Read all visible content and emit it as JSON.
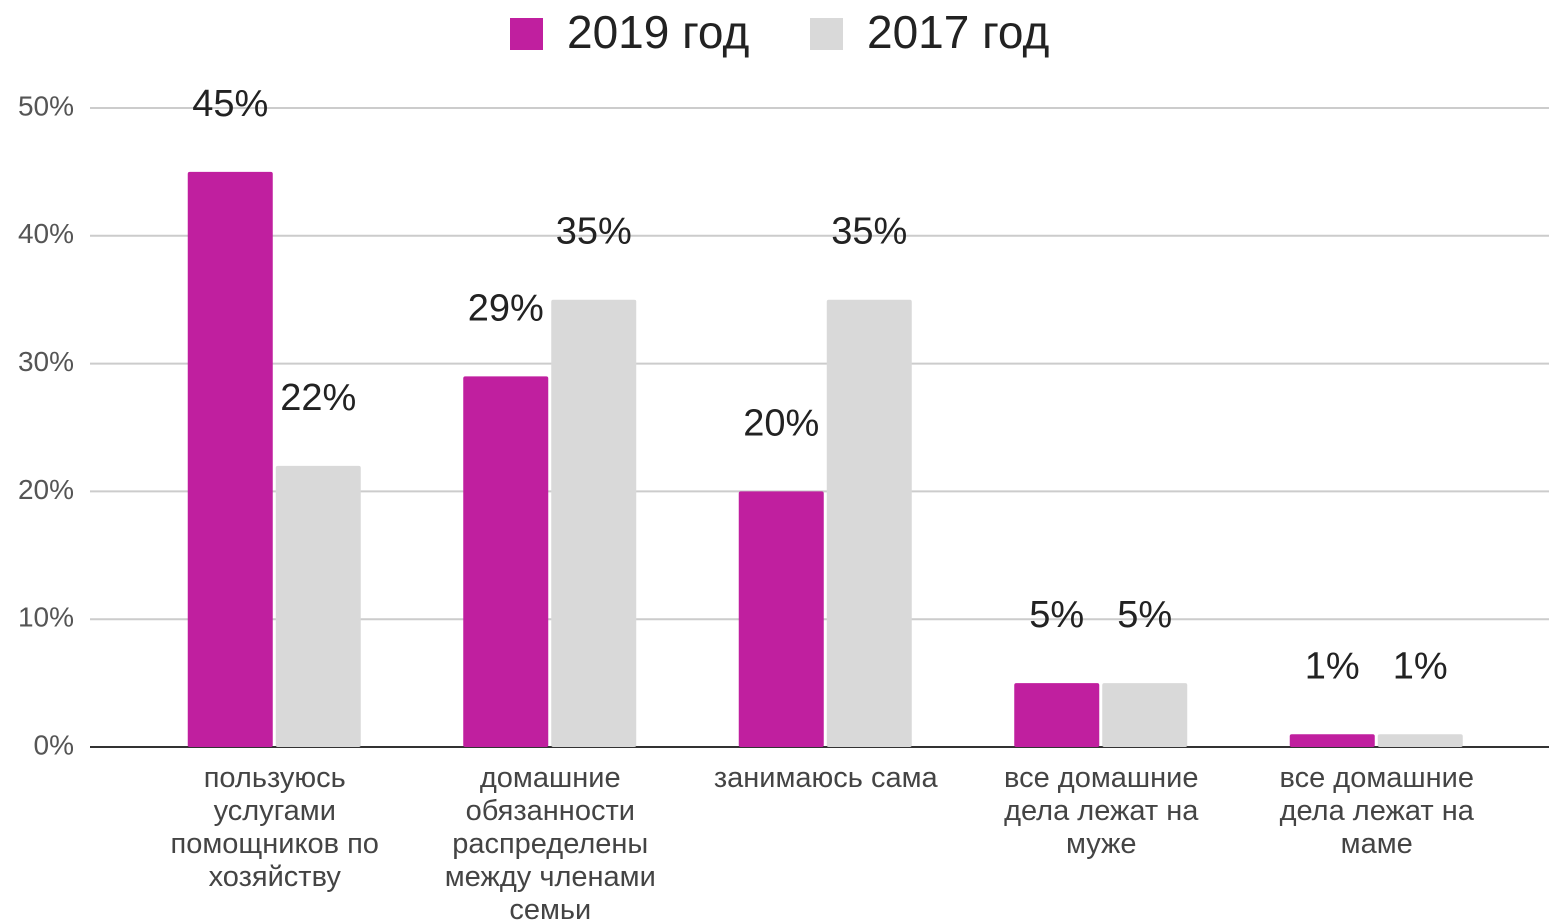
{
  "chart_data": {
    "type": "bar",
    "categories": [
      "пользуюсь услугами помощников по хозяйству",
      "домашние обязанности распределены между членами семьи",
      "занимаюсь сама",
      "все домашние дела лежат на муже",
      "все домашние дела лежат на маме"
    ],
    "series": [
      {
        "name": "2019 год",
        "color": "#c01f9f",
        "values": [
          45,
          29,
          20,
          5,
          1
        ],
        "value_labels": [
          "45%",
          "29%",
          "20%",
          "5%",
          "1%"
        ]
      },
      {
        "name": "2017 год",
        "color": "#d9d9d9",
        "values": [
          22,
          35,
          35,
          5,
          1
        ],
        "value_labels": [
          "22%",
          "35%",
          "35%",
          "5%",
          "1%"
        ]
      }
    ],
    "ylim": [
      0,
      50
    ],
    "yticks": [
      {
        "value": 0,
        "label": "0%"
      },
      {
        "value": 10,
        "label": "10%"
      },
      {
        "value": 20,
        "label": "20%"
      },
      {
        "value": 30,
        "label": "30%"
      },
      {
        "value": 40,
        "label": "40%"
      },
      {
        "value": 50,
        "label": "50%"
      }
    ],
    "grid": true,
    "legend": "top"
  }
}
